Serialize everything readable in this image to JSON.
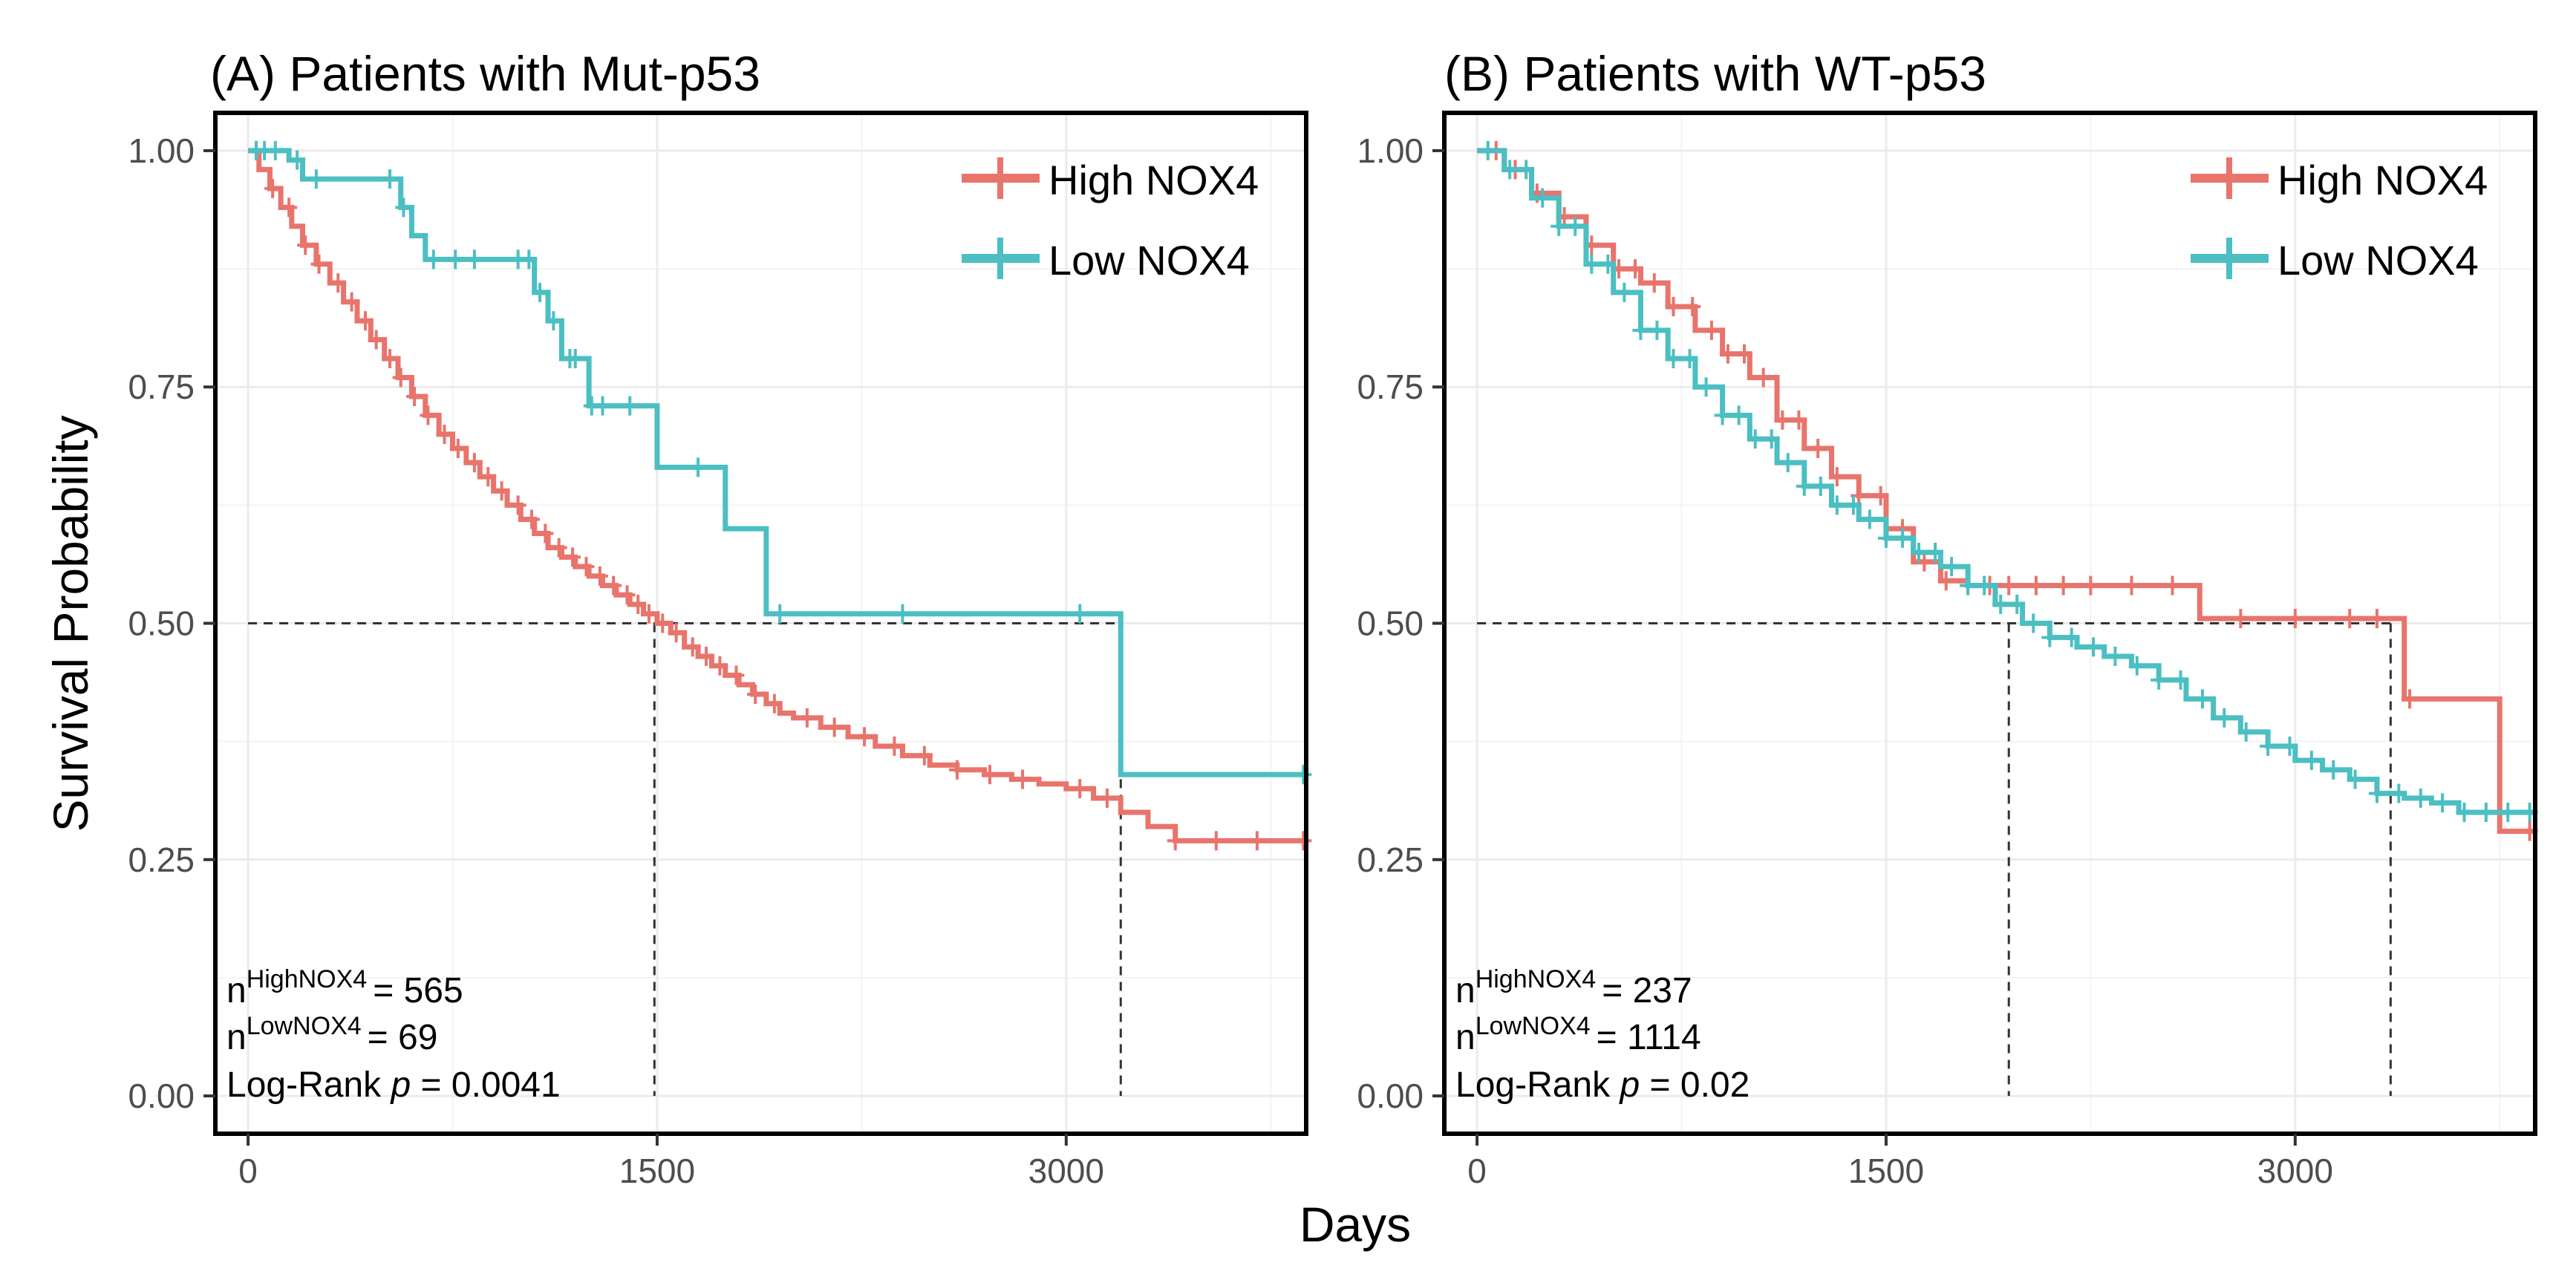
{
  "figure": {
    "ylabel": "Survival Probability",
    "xlabel": "Days",
    "colors": {
      "high": "#E8746C",
      "low": "#4BBFC2",
      "grid": "#EBEBEB",
      "ref": "#333333",
      "frame": "#000000"
    }
  },
  "chart_data": [
    {
      "type": "line",
      "title": "(A) Patients with Mut-p53",
      "xlabel": "Days",
      "ylabel": "Survival Probability",
      "xlim": [
        -120,
        3880
      ],
      "ylim": [
        -0.04,
        1.04
      ],
      "xticks": [
        0,
        1500,
        3000
      ],
      "xtick_labels": [
        "0",
        "1500",
        "3000"
      ],
      "yticks": [
        0,
        0.25,
        0.5,
        0.75,
        1.0
      ],
      "ytick_labels": [
        "0.00",
        "0.25",
        "0.50",
        "0.75",
        "1.00"
      ],
      "legend": [
        "High NOX4",
        "Low NOX4"
      ],
      "legend_position": "top-right",
      "median_survival": {
        "High NOX4": 1490,
        "Low NOX4": 3200
      },
      "annotations": {
        "n_high_base": "n",
        "n_high_sup": "HighNOX4",
        "n_high_val": "= 565",
        "n_low_base": "n",
        "n_low_sup": "LowNOX4",
        "n_low_val": "= 69",
        "logrank_prefix": "Log-Rank ",
        "logrank_p": "p",
        "logrank_val": " = 0.0041"
      },
      "series": [
        {
          "name": "High NOX4",
          "color": "#E8746C",
          "x": [
            0,
            40,
            80,
            120,
            160,
            200,
            250,
            300,
            350,
            400,
            450,
            500,
            550,
            600,
            650,
            700,
            750,
            800,
            850,
            900,
            950,
            1000,
            1050,
            1100,
            1150,
            1200,
            1250,
            1300,
            1350,
            1400,
            1450,
            1500,
            1550,
            1600,
            1650,
            1700,
            1750,
            1800,
            1850,
            1900,
            1950,
            2000,
            2100,
            2200,
            2300,
            2400,
            2500,
            2600,
            2700,
            2800,
            2900,
            3000,
            3100,
            3200,
            3300,
            3400,
            3500,
            3880
          ],
          "y": [
            1.0,
            0.98,
            0.96,
            0.94,
            0.92,
            0.9,
            0.88,
            0.86,
            0.84,
            0.82,
            0.8,
            0.78,
            0.76,
            0.74,
            0.72,
            0.7,
            0.685,
            0.67,
            0.655,
            0.64,
            0.625,
            0.61,
            0.595,
            0.58,
            0.57,
            0.56,
            0.55,
            0.54,
            0.53,
            0.52,
            0.51,
            0.5,
            0.49,
            0.475,
            0.465,
            0.455,
            0.445,
            0.435,
            0.425,
            0.415,
            0.405,
            0.4,
            0.39,
            0.38,
            0.37,
            0.36,
            0.35,
            0.345,
            0.34,
            0.335,
            0.33,
            0.325,
            0.315,
            0.3,
            0.285,
            0.27,
            0.27,
            0.27
          ],
          "censor_x": [
            30,
            90,
            150,
            210,
            260,
            330,
            380,
            430,
            470,
            520,
            560,
            610,
            660,
            720,
            770,
            830,
            880,
            930,
            990,
            1040,
            1090,
            1140,
            1190,
            1240,
            1290,
            1340,
            1390,
            1430,
            1470,
            1520,
            1570,
            1630,
            1680,
            1730,
            1790,
            1860,
            1930,
            2050,
            2150,
            2260,
            2370,
            2480,
            2600,
            2720,
            2840,
            3050,
            3150,
            3400,
            3550,
            3700,
            3870
          ]
        },
        {
          "name": "Low NOX4",
          "color": "#4BBFC2",
          "x": [
            0,
            150,
            200,
            500,
            560,
            600,
            650,
            1000,
            1050,
            1100,
            1150,
            1250,
            1350,
            1500,
            1750,
            1900,
            3200,
            3880
          ],
          "y": [
            1.0,
            0.99,
            0.97,
            0.97,
            0.94,
            0.91,
            0.885,
            0.885,
            0.85,
            0.82,
            0.78,
            0.73,
            0.73,
            0.665,
            0.6,
            0.51,
            0.34,
            0.34
          ],
          "censor_x": [
            30,
            60,
            100,
            180,
            250,
            520,
            570,
            680,
            760,
            830,
            990,
            1030,
            1070,
            1120,
            1180,
            1200,
            1260,
            1300,
            1400,
            1650,
            1950,
            2400,
            3050,
            3870
          ]
        }
      ]
    },
    {
      "type": "line",
      "title": "(B) Patients with WT-p53",
      "xlabel": "Days",
      "ylabel": "Survival Probability",
      "xlim": [
        -120,
        3880
      ],
      "ylim": [
        -0.04,
        1.04
      ],
      "xticks": [
        0,
        1500,
        3000
      ],
      "xtick_labels": [
        "0",
        "1500",
        "3000"
      ],
      "yticks": [
        0,
        0.25,
        0.5,
        0.75,
        1.0
      ],
      "ytick_labels": [
        "0.00",
        "0.25",
        "0.50",
        "0.75",
        "1.00"
      ],
      "legend": [
        "High NOX4",
        "Low NOX4"
      ],
      "legend_position": "top-right",
      "median_survival": {
        "High NOX4": 3350,
        "Low NOX4": 1950
      },
      "annotations": {
        "n_high_base": "n",
        "n_high_sup": "HighNOX4",
        "n_high_val": "= 237",
        "n_low_base": "n",
        "n_low_sup": "LowNOX4",
        "n_low_val": "= 1114",
        "logrank_prefix": "Log-Rank ",
        "logrank_p": "p",
        "logrank_val": " = 0.02"
      },
      "series": [
        {
          "name": "High NOX4",
          "color": "#E8746C",
          "x": [
            0,
            100,
            200,
            300,
            400,
            500,
            600,
            700,
            800,
            900,
            1000,
            1100,
            1200,
            1300,
            1400,
            1500,
            1600,
            1700,
            1800,
            1900,
            2000,
            2600,
            2650,
            3350,
            3400,
            3750,
            3880
          ],
          "y": [
            1.0,
            0.98,
            0.955,
            0.93,
            0.9,
            0.875,
            0.86,
            0.835,
            0.81,
            0.785,
            0.76,
            0.715,
            0.685,
            0.655,
            0.635,
            0.6,
            0.565,
            0.545,
            0.54,
            0.54,
            0.54,
            0.54,
            0.505,
            0.505,
            0.42,
            0.28,
            0.28
          ],
          "censor_x": [
            70,
            140,
            220,
            320,
            420,
            520,
            580,
            650,
            720,
            790,
            860,
            920,
            980,
            1050,
            1120,
            1180,
            1250,
            1320,
            1400,
            1480,
            1560,
            1640,
            1720,
            1800,
            1880,
            1950,
            2050,
            2150,
            2250,
            2400,
            2550,
            2800,
            3000,
            3200,
            3300,
            3420,
            3860
          ]
        },
        {
          "name": "Low NOX4",
          "color": "#4BBFC2",
          "x": [
            0,
            100,
            200,
            300,
            400,
            500,
            600,
            700,
            800,
            900,
            1000,
            1100,
            1200,
            1300,
            1400,
            1500,
            1600,
            1700,
            1800,
            1900,
            2000,
            2100,
            2200,
            2300,
            2400,
            2500,
            2600,
            2700,
            2800,
            2900,
            3000,
            3100,
            3200,
            3300,
            3400,
            3500,
            3600,
            3880
          ],
          "y": [
            1.0,
            0.98,
            0.95,
            0.92,
            0.88,
            0.85,
            0.81,
            0.78,
            0.75,
            0.72,
            0.695,
            0.67,
            0.645,
            0.625,
            0.61,
            0.59,
            0.575,
            0.56,
            0.54,
            0.52,
            0.5,
            0.485,
            0.475,
            0.465,
            0.455,
            0.44,
            0.42,
            0.4,
            0.385,
            0.37,
            0.355,
            0.345,
            0.335,
            0.32,
            0.315,
            0.31,
            0.3,
            0.3
          ],
          "censor_x": [
            40,
            120,
            180,
            240,
            300,
            360,
            420,
            480,
            540,
            600,
            660,
            720,
            780,
            840,
            900,
            960,
            1020,
            1080,
            1140,
            1200,
            1260,
            1320,
            1380,
            1440,
            1500,
            1560,
            1620,
            1680,
            1740,
            1800,
            1860,
            1920,
            1980,
            2040,
            2100,
            2180,
            2260,
            2340,
            2420,
            2500,
            2580,
            2660,
            2740,
            2820,
            2900,
            2980,
            3060,
            3140,
            3220,
            3300,
            3380,
            3460,
            3540,
            3620,
            3700,
            3780,
            3860
          ]
        }
      ]
    }
  ]
}
